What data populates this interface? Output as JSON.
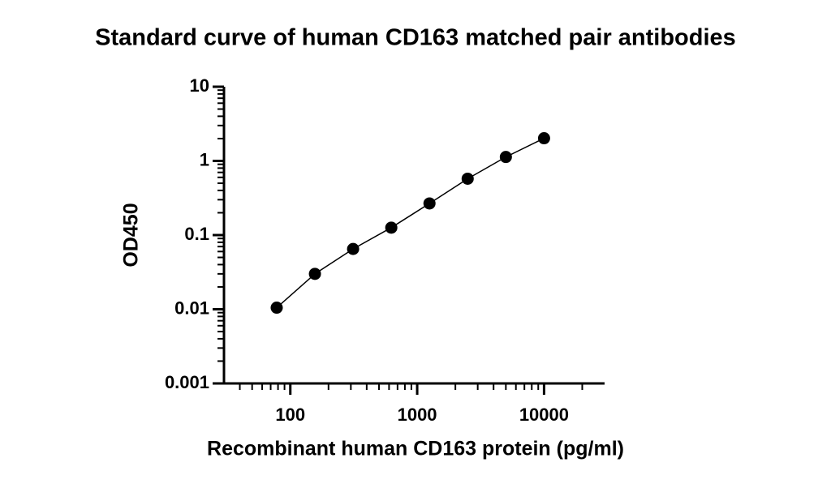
{
  "chart_data": {
    "type": "scatter",
    "title": "Standard curve of human CD163 matched pair antibodies",
    "x_label": "Recombinant human CD163 protein (pg/ml)",
    "y_label": "OD450",
    "x": [
      78.125,
      156.25,
      312.5,
      625,
      1250,
      2500,
      5000,
      10000
    ],
    "values": [
      0.0105,
      0.03,
      0.065,
      0.126,
      0.267,
      0.575,
      1.13,
      2.02
    ],
    "color": "#000000",
    "connect": true,
    "xscale": "log",
    "yscale": "log",
    "xlim": [
      30,
      30000
    ],
    "xticks": [
      100,
      1000,
      10000
    ],
    "ylim": [
      0.001,
      10
    ],
    "yticks": [
      0.001,
      0.01,
      0.1,
      1,
      10
    ]
  }
}
